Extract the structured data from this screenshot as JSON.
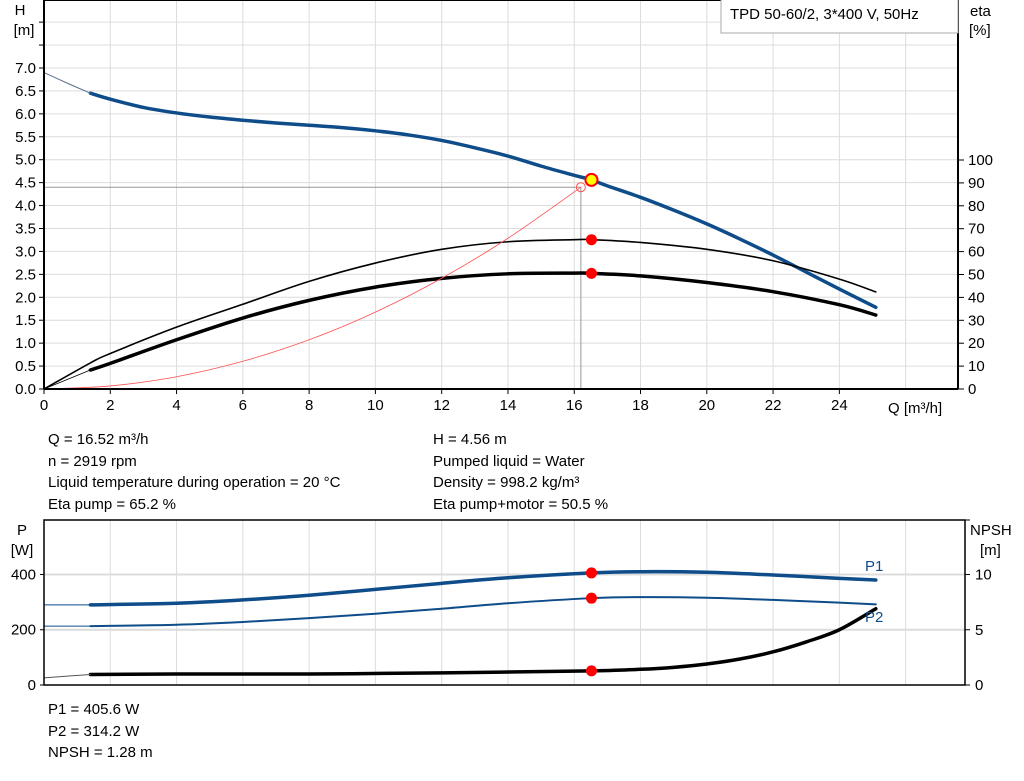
{
  "chart_data": [
    {
      "type": "line",
      "title": "TPD 50-60/2, 3*400 V, 50Hz",
      "xlabel": "Q [m³/h]",
      "ylabel": "H\n[m]",
      "ylabel_h": "H",
      "yunit_h": "[m]",
      "ylabel_right": "eta",
      "yunit_right": "[%]",
      "xlim": [
        0,
        27.6
      ],
      "ylim": [
        0,
        8.48
      ],
      "ylim_right": [
        0,
        170
      ],
      "grid": true,
      "x_ticks": [
        "0",
        "2",
        "4",
        "6",
        "8",
        "10",
        "12",
        "14",
        "16",
        "18",
        "20",
        "22",
        "24"
      ],
      "y_ticks": [
        "0.0",
        "0.5",
        "1.0",
        "1.5",
        "2.0",
        "2.5",
        "3.0",
        "3.5",
        "4.0",
        "4.5",
        "5.0",
        "5.5",
        "6.0",
        "6.5",
        "7.0"
      ],
      "y_ticks_right": [
        "0",
        "10",
        "20",
        "30",
        "40",
        "50",
        "60",
        "70",
        "80",
        "90",
        "100"
      ],
      "series": [
        {
          "key": "H",
          "axis": "left",
          "color": "#0e4c8a",
          "width": 3.5,
          "x": [
            1.4,
            2,
            3,
            4,
            5,
            6,
            7,
            8,
            9,
            10,
            11,
            12,
            13,
            14,
            15,
            16,
            16.52,
            17,
            18,
            19,
            20,
            21,
            22,
            23,
            24,
            25.1
          ],
          "y": [
            6.45,
            6.32,
            6.14,
            6.02,
            5.93,
            5.86,
            5.8,
            5.75,
            5.7,
            5.63,
            5.54,
            5.42,
            5.26,
            5.08,
            4.86,
            4.66,
            4.56,
            4.43,
            4.18,
            3.9,
            3.6,
            3.27,
            2.92,
            2.55,
            2.18,
            1.78
          ]
        },
        {
          "key": "H_extrapolated",
          "axis": "left",
          "color": "#5a6f8f",
          "width": 1,
          "x": [
            0,
            0.7,
            1.4
          ],
          "y": [
            6.9,
            6.67,
            6.45
          ]
        },
        {
          "key": "eta_pump",
          "axis": "right",
          "color": "#000",
          "width": 1.6,
          "x": [
            0,
            1.4,
            2,
            4,
            6,
            8,
            10,
            12,
            14,
            16,
            16.52,
            18,
            20,
            22,
            24,
            25.1
          ],
          "y": [
            0,
            11.4,
            15.5,
            27,
            37,
            47,
            55,
            61,
            64.3,
            65.2,
            65.2,
            64,
            61,
            56,
            48,
            42.4
          ]
        },
        {
          "key": "eta_pump_motor",
          "axis": "right",
          "color": "#000",
          "width": 3.5,
          "x": [
            1.4,
            2,
            4,
            6,
            8,
            10,
            12,
            14,
            16,
            16.52,
            18,
            20,
            22,
            24,
            25.1
          ],
          "y": [
            8.3,
            11.2,
            21.5,
            31,
            38.7,
            44.5,
            48.3,
            50.3,
            50.6,
            50.5,
            49.4,
            46.5,
            42.5,
            36.8,
            32.3
          ]
        },
        {
          "key": "eta_extrapolated",
          "axis": "right",
          "color": "#000",
          "width": 0.8,
          "x": [
            0,
            1.4
          ],
          "y": [
            0,
            8.3
          ]
        },
        {
          "key": "system_curve",
          "axis": "left",
          "color": "#ff5050",
          "width": 0.8,
          "x": [
            0,
            2,
            4,
            6,
            8,
            10,
            12,
            14,
            16.2
          ],
          "y": [
            0,
            0.067,
            0.268,
            0.604,
            1.073,
            1.677,
            2.415,
            3.287,
            4.4
          ]
        }
      ],
      "guide_point": {
        "x": 16.2,
        "y": 4.4
      },
      "operating_point": {
        "x": 16.52,
        "y": 4.56,
        "eta_pump": 65.2,
        "eta_total": 50.5
      }
    },
    {
      "type": "line",
      "ylabel_p": "P",
      "yunit_p": "[W]",
      "ylabel_right": "NPSH",
      "yunit_right": "[m]",
      "ylim": [
        0,
        597
      ],
      "ylim_right": [
        0,
        14.9
      ],
      "grid": true,
      "y_ticks": [
        "0",
        "200",
        "400"
      ],
      "y_ticks_right": [
        "0",
        "5",
        "10"
      ],
      "series": [
        {
          "key": "P1",
          "name": "P1",
          "axis": "left",
          "color": "#0e4c8a",
          "width": 3.5,
          "x": [
            1.4,
            4,
            6,
            8,
            10,
            12,
            14,
            16.52,
            18,
            20,
            22,
            24,
            25.1
          ],
          "y": [
            290,
            296,
            308,
            325,
            346,
            368,
            388,
            405.6,
            410,
            408,
            398,
            386,
            380
          ]
        },
        {
          "key": "P1_ext",
          "axis": "left",
          "color": "#0e4c8a",
          "width": 1,
          "x": [
            0,
            1.4
          ],
          "y": [
            290,
            290
          ]
        },
        {
          "key": "P2",
          "name": "P2",
          "axis": "left",
          "color": "#0e4c8a",
          "width": 2,
          "x": [
            1.4,
            4,
            6,
            8,
            10,
            12,
            14,
            16.52,
            18,
            20,
            22,
            24,
            25.1
          ],
          "y": [
            213,
            218,
            228,
            242,
            258,
            276,
            296,
            314.2,
            318,
            316,
            308,
            298,
            292
          ]
        },
        {
          "key": "P2_ext",
          "axis": "left",
          "color": "#0e4c8a",
          "width": 1,
          "x": [
            0,
            1.4
          ],
          "y": [
            213,
            213
          ]
        },
        {
          "key": "NPSH",
          "axis": "right",
          "color": "#000",
          "width": 3.5,
          "x": [
            1.4,
            4,
            8,
            12,
            16.52,
            18,
            19,
            20,
            21,
            22,
            23,
            24,
            25.1
          ],
          "y": [
            0.95,
            1.0,
            1.0,
            1.1,
            1.28,
            1.42,
            1.6,
            1.9,
            2.35,
            3.0,
            3.9,
            5.0,
            6.9
          ]
        },
        {
          "key": "NPSH_ext",
          "axis": "right",
          "color": "#555",
          "width": 1,
          "x": [
            0,
            1.4
          ],
          "y": [
            0.65,
            0.95
          ]
        }
      ],
      "operating_points": {
        "P1": 405.6,
        "P2": 314.2,
        "NPSH": 1.28,
        "x": 16.52
      }
    }
  ],
  "readout": {
    "q": "Q = 16.52 m³/h",
    "n": "n = 2919 rpm",
    "temp": "Liquid temperature during operation = 20 °C",
    "eta_pump": "Eta pump = 65.2 %",
    "h": "H = 4.56 m",
    "liquid": "Pumped liquid = Water",
    "density": "Density = 998.2 kg/m³",
    "eta_total": "Eta pump+motor = 50.5 %",
    "p1": "P1 = 405.6 W",
    "p2": "P2 = 314.2 W",
    "npsh": "NPSH = 1.28 m"
  },
  "colors": {
    "curve_blue": "#0e4c8a",
    "marker_red": "#ff0000",
    "marker_yellow": "#ffff00",
    "grid": "#dcdcdc"
  }
}
